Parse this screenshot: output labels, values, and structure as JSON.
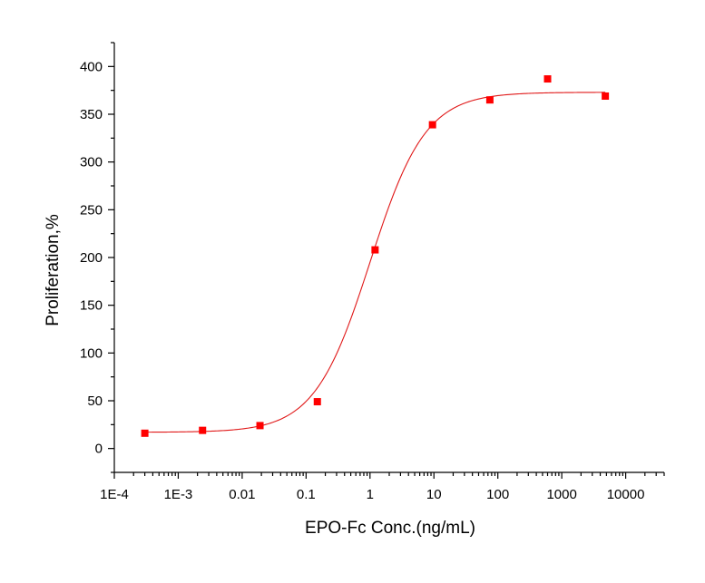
{
  "chart_data": {
    "type": "scatter",
    "title": "",
    "xlabel": "EPO-Fc Conc.(ng/mL)",
    "ylabel": "Proliferation,%",
    "x_scale": "log",
    "xlim": [
      0.0001,
      40000
    ],
    "ylim": [
      -25,
      425
    ],
    "x_tick_values": [
      0.0001,
      0.001,
      0.01,
      0.1,
      1,
      10,
      100,
      1000,
      10000
    ],
    "x_tick_labels": [
      "1E-4",
      "1E-3",
      "0.01",
      "0.1",
      "1",
      "10",
      "100",
      "1000",
      "10000"
    ],
    "y_tick_values": [
      0,
      50,
      100,
      150,
      200,
      250,
      300,
      350,
      400
    ],
    "y_tick_labels": [
      "0",
      "50",
      "100",
      "150",
      "200",
      "250",
      "300",
      "350",
      "400"
    ],
    "grid": false,
    "marker_color": "#ff0000",
    "line_color": "#e01818",
    "series": [
      {
        "type": "scatter",
        "x": [
          0.0003,
          0.0024,
          0.019,
          0.15,
          1.2,
          9.5,
          75,
          600,
          4800
        ],
        "y": [
          16,
          19,
          24,
          49,
          208,
          339,
          365,
          387,
          369
        ]
      },
      {
        "type": "line",
        "fit": "4-parameter logistic",
        "bottom": 17,
        "top": 373,
        "ec50": 1.0,
        "hill": 1.0
      }
    ]
  }
}
